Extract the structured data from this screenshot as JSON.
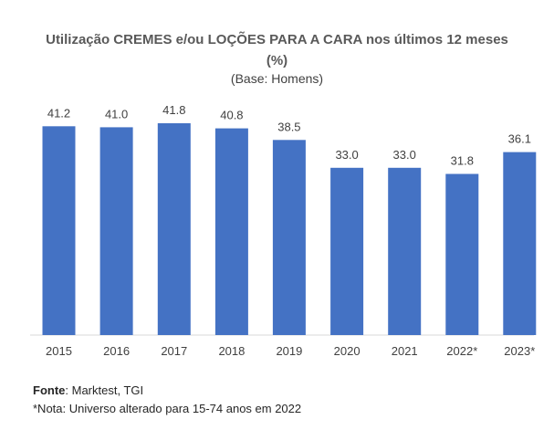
{
  "chart_data": {
    "type": "bar",
    "title": "Utilização CREMES e/ou LOÇÕES PARA A CARA nos últimos 12 meses (%)",
    "subtitle": "(Base: Homens)",
    "categories": [
      "2015",
      "2016",
      "2017",
      "2018",
      "2019",
      "2020",
      "2021",
      "2022*",
      "2023*"
    ],
    "values": [
      41.2,
      41.0,
      41.8,
      40.8,
      38.5,
      33.0,
      33.0,
      31.8,
      36.1
    ],
    "value_labels": [
      "41.2",
      "41.0",
      "41.8",
      "40.8",
      "38.5",
      "33.0",
      "33.0",
      "31.8",
      "36.1"
    ],
    "ylim": [
      0,
      41.8
    ],
    "bar_color": "#4472C4",
    "xlabel": "",
    "ylabel": ""
  },
  "footer": {
    "source_label": "Fonte",
    "source_text": ": Marktest, TGI",
    "note": "*Nota: Universo alterado para 15-74 anos em 2022"
  }
}
